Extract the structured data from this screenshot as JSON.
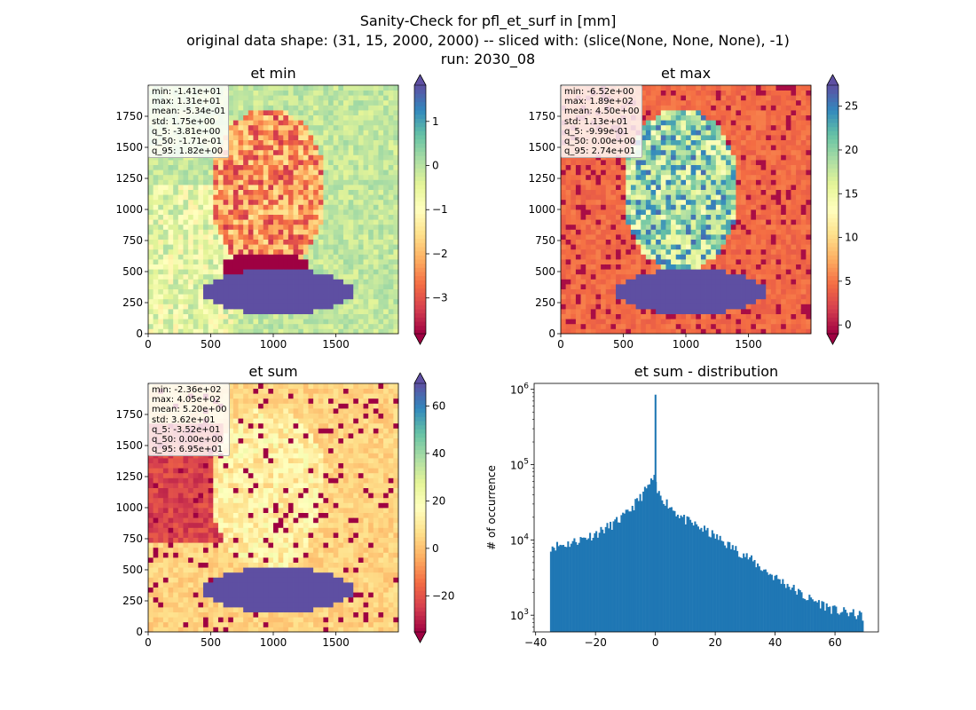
{
  "figure": {
    "title_lines": [
      "Sanity-Check for pfl_et_surf in [mm]",
      "original data shape: (31, 15, 2000, 2000) -- sliced with: (slice(None, None, None), -1)",
      "run: 2030_08"
    ]
  },
  "chart_data": [
    {
      "type": "heatmap",
      "title": "et min",
      "xlim": [
        0,
        2000
      ],
      "ylim": [
        0,
        2000
      ],
      "x_ticks": [
        0,
        500,
        1000,
        1500
      ],
      "y_ticks": [
        0,
        250,
        500,
        750,
        1000,
        1250,
        1500,
        1750
      ],
      "colormap": "Spectral",
      "color_range": [
        -3.81,
        1.82
      ],
      "colorbar_ticks": [
        1,
        0,
        -1,
        -2,
        -3
      ],
      "colorbar_extend": "both",
      "stats": [
        "min: -1.41e+01",
        "max: 1.31e+01",
        "mean: -5.34e-01",
        "std: 1.75e+00",
        "q_5: -3.81e+00",
        "q_50: -1.71e-01",
        "q_95: 1.82e+00"
      ]
    },
    {
      "type": "heatmap",
      "title": "et max",
      "xlim": [
        0,
        2000
      ],
      "ylim": [
        0,
        2000
      ],
      "x_ticks": [
        0,
        500,
        1000,
        1500
      ],
      "y_ticks": [
        0,
        250,
        500,
        750,
        1000,
        1250,
        1500,
        1750
      ],
      "colormap": "Spectral",
      "color_range": [
        -0.999,
        27.4
      ],
      "colorbar_ticks": [
        25,
        20,
        15,
        10,
        5,
        0
      ],
      "colorbar_extend": "both",
      "stats": [
        "min: -6.52e+00",
        "max: 1.89e+02",
        "mean: 4.50e+00",
        "std: 1.13e+01",
        "q_5: -9.99e-01",
        "q_50: 0.00e+00",
        "q_95: 2.74e+01"
      ]
    },
    {
      "type": "heatmap",
      "title": "et sum",
      "xlim": [
        0,
        2000
      ],
      "ylim": [
        0,
        2000
      ],
      "x_ticks": [
        0,
        500,
        1000,
        1500
      ],
      "y_ticks": [
        0,
        250,
        500,
        750,
        1000,
        1250,
        1500,
        1750
      ],
      "colormap": "Spectral",
      "color_range": [
        -35.2,
        69.5
      ],
      "colorbar_ticks": [
        60,
        40,
        20,
        0,
        -20
      ],
      "colorbar_extend": "both",
      "stats": [
        "min: -2.36e+02",
        "max: 4.05e+02",
        "mean: 5.20e+00",
        "std: 3.62e+01",
        "q_5: -3.52e+01",
        "q_50: 0.00e+00",
        "q_95: 6.95e+01"
      ]
    },
    {
      "type": "bar",
      "title": "et sum - distribution",
      "ylabel": "# of occurrence",
      "yscale": "log",
      "xlim": [
        -40.5,
        74.5
      ],
      "ylim": [
        600,
        1200000
      ],
      "x_ticks": [
        -40,
        -20,
        0,
        20,
        40,
        60
      ],
      "x_tick_labels": [
        "−40",
        "−20",
        "0",
        "20",
        "40",
        "60"
      ],
      "y_ticks": [
        1000,
        10000,
        100000,
        1000000
      ],
      "y_tick_labels": [
        "10",
        "10",
        "10",
        "10"
      ],
      "y_tick_exponents": [
        "3",
        "4",
        "5",
        "6"
      ],
      "bar_color": "#1f77b4",
      "bin_range": [
        -35.2,
        69.5
      ],
      "peak": {
        "x": 0,
        "count": 850000
      },
      "bins": [
        [
          -35.2,
          8500
        ],
        [
          -30,
          9000
        ],
        [
          -25,
          10500
        ],
        [
          -20,
          12500
        ],
        [
          -15,
          16000
        ],
        [
          -10,
          22000
        ],
        [
          -5,
          38000
        ],
        [
          -2,
          56000
        ],
        [
          -0.5,
          70000
        ],
        [
          0.5,
          45000
        ],
        [
          3,
          35000
        ],
        [
          6,
          26000
        ],
        [
          10,
          19000
        ],
        [
          15,
          15000
        ],
        [
          20,
          11500
        ],
        [
          25,
          8500
        ],
        [
          30,
          6500
        ],
        [
          35,
          4500
        ],
        [
          40,
          3300
        ],
        [
          45,
          2500
        ],
        [
          50,
          1800
        ],
        [
          55,
          1500
        ],
        [
          60,
          1200
        ],
        [
          65,
          1100
        ],
        [
          69.5,
          1000
        ]
      ]
    }
  ]
}
